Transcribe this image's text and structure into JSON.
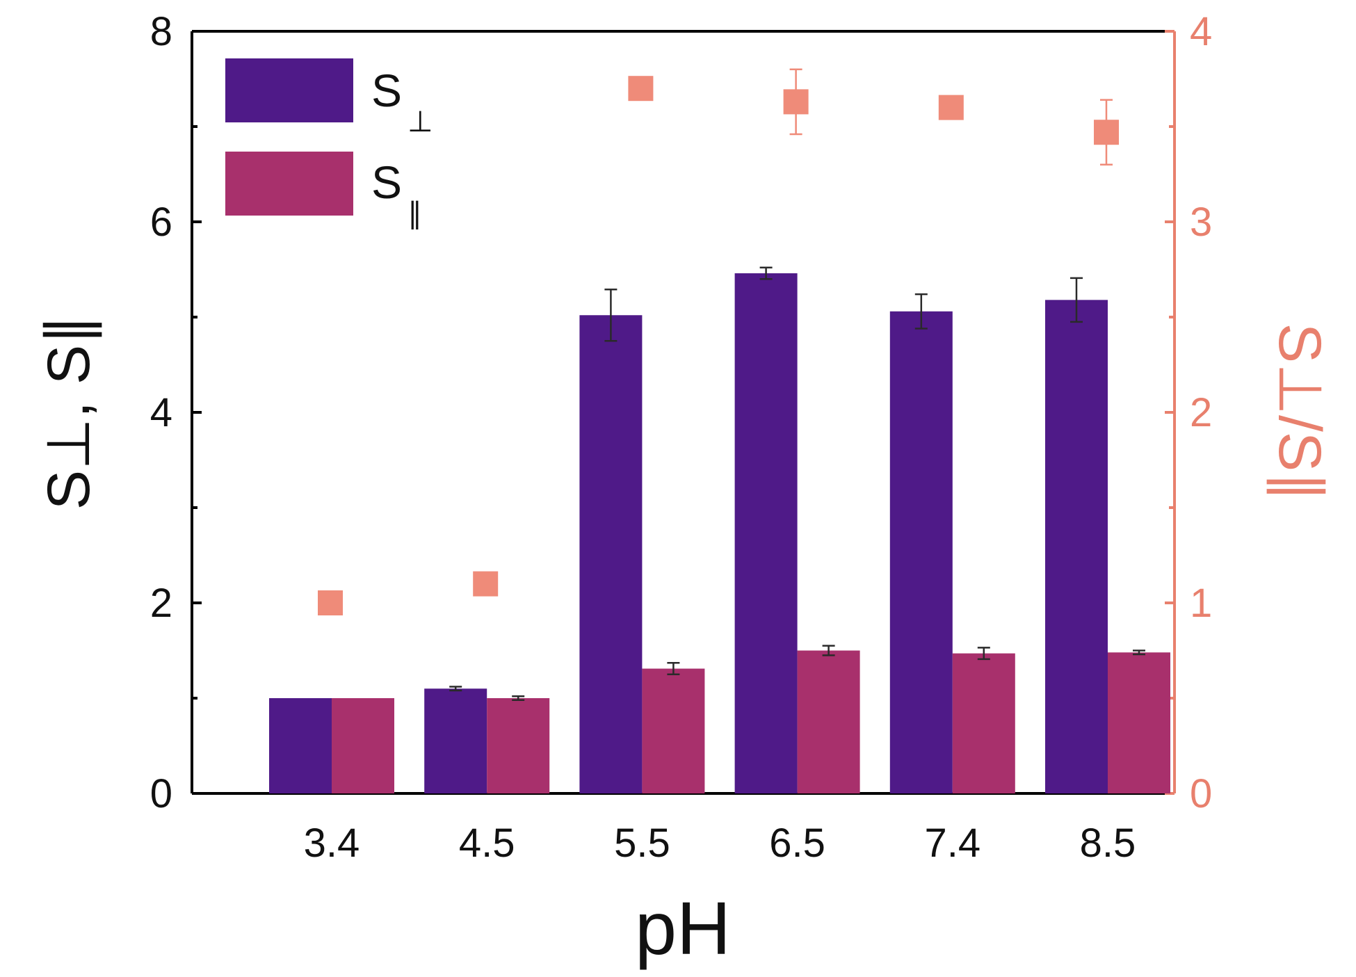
{
  "chart_data": {
    "type": "bar",
    "xlabel": "pH",
    "ylabel": "S⊥, S∥",
    "ylabel_right": "S⊥/S∥",
    "categories": [
      "3.4",
      "4.5",
      "5.5",
      "6.5",
      "7.4",
      "8.5"
    ],
    "ylim": [
      0,
      8
    ],
    "ylim_right": [
      0,
      4
    ],
    "yticks": [
      "0",
      "2",
      "4",
      "6",
      "8"
    ],
    "yticks_right": [
      "0",
      "1",
      "2",
      "3",
      "4"
    ],
    "series": [
      {
        "name": "S⊥",
        "legend_label": "S",
        "legend_sub": "⊥",
        "color": "#4f1a88",
        "values": [
          1.0,
          1.1,
          5.02,
          5.46,
          5.06,
          5.18
        ],
        "errors": [
          0.0,
          0.02,
          0.27,
          0.06,
          0.18,
          0.23
        ]
      },
      {
        "name": "S∥",
        "legend_label": "S",
        "legend_sub": "∥",
        "color": "#a8306c",
        "values": [
          1.0,
          1.0,
          1.31,
          1.5,
          1.47,
          1.48
        ],
        "errors": [
          0.0,
          0.02,
          0.06,
          0.05,
          0.06,
          0.02
        ]
      }
    ],
    "ratio_series": {
      "name": "S⊥/S∥",
      "axis": "right",
      "color": "#ef8b79",
      "values": [
        1.0,
        1.1,
        3.7,
        3.63,
        3.6,
        3.47
      ],
      "errors": [
        0.0,
        0.0,
        0.03,
        0.17,
        0.03,
        0.17
      ]
    },
    "legend_position": "top-left"
  }
}
